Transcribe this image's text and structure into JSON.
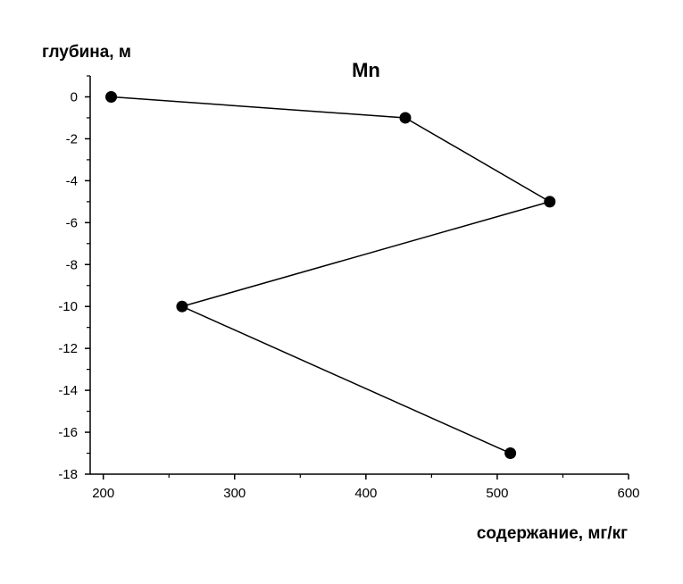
{
  "chart_data": {
    "type": "line",
    "title": "Mn",
    "xlabel": "содержание, мг/кг",
    "ylabel": "глубина, м",
    "xlim": [
      190,
      600
    ],
    "ylim": [
      -18,
      1
    ],
    "x_ticks": [
      200,
      300,
      400,
      500,
      600
    ],
    "y_ticks": [
      0,
      -2,
      -4,
      -6,
      -8,
      -10,
      -12,
      -14,
      -16,
      -18
    ],
    "grid": false,
    "legend": "none",
    "series": [
      {
        "x": [
          206,
          430,
          540,
          260,
          510
        ],
        "y": [
          0,
          -1,
          -5,
          -10,
          -17
        ],
        "color": "#000000",
        "marker": "circle"
      }
    ]
  }
}
